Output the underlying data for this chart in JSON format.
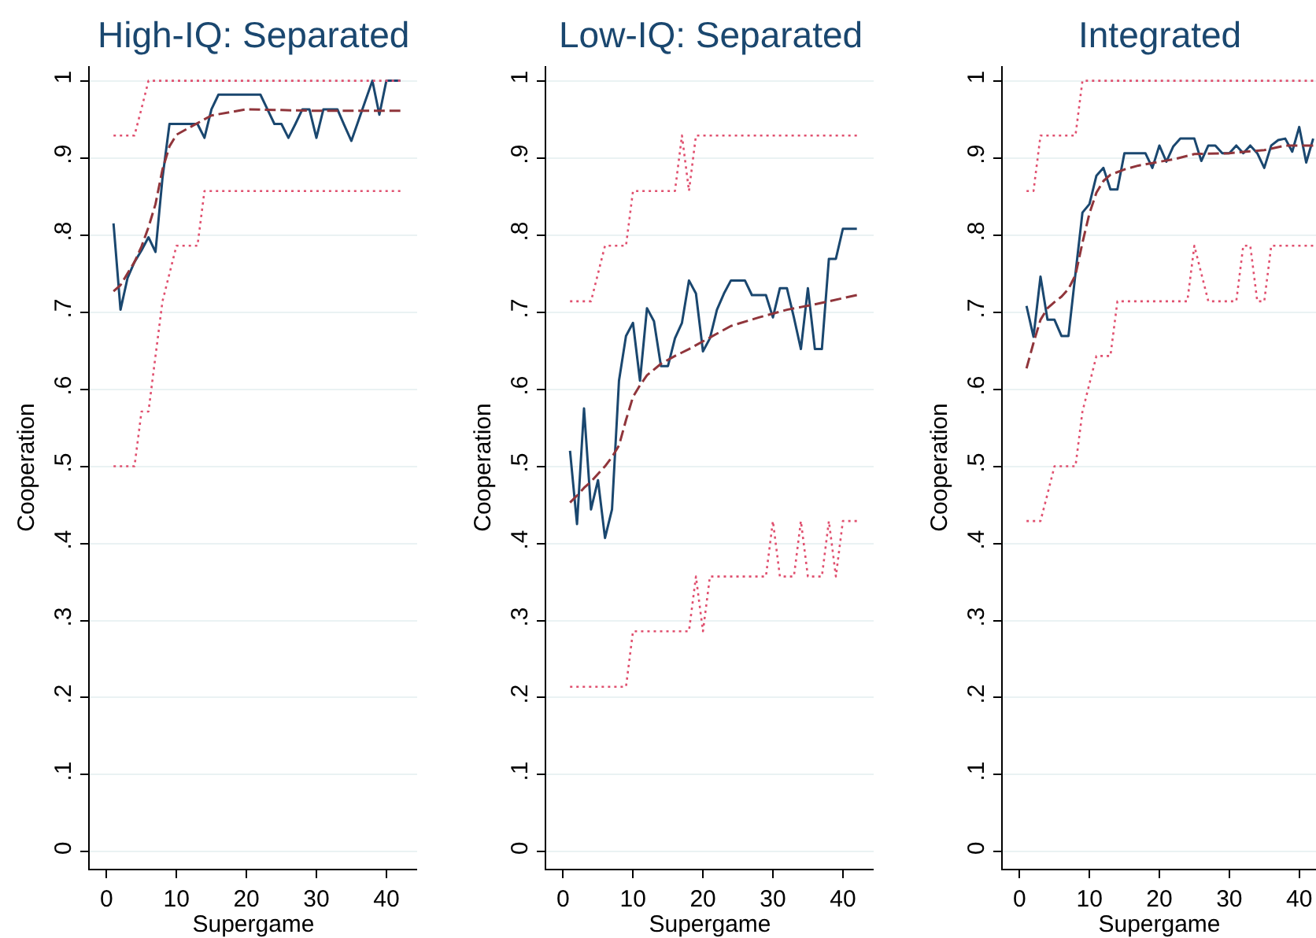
{
  "chart_data": [
    {
      "type": "line",
      "title": "High-IQ: Separated",
      "xlabel": "Supergame",
      "ylabel": "Cooperation",
      "xlim": [
        -2.4,
        44.4
      ],
      "xticks": [
        0,
        10,
        20,
        30,
        40
      ],
      "ylim": [
        -0.022,
        1.019
      ],
      "yticks": [
        0,
        {
          "value": 0.1,
          "label": ".1"
        },
        {
          "value": 0.2,
          "label": ".2"
        },
        {
          "value": 0.3,
          "label": ".3"
        },
        {
          "value": 0.4,
          "label": ".4"
        },
        {
          "value": 0.5,
          "label": ".5"
        },
        {
          "value": 0.6,
          "label": ".6"
        },
        {
          "value": 0.7,
          "label": ".7"
        },
        {
          "value": 0.8,
          "label": ".8"
        },
        {
          "value": 0.9,
          "label": ".9"
        },
        1
      ],
      "grid": "y",
      "x": [
        1,
        2,
        3,
        4,
        5,
        6,
        7,
        8,
        9,
        10,
        11,
        12,
        13,
        14,
        15,
        16,
        17,
        18,
        19,
        20,
        21,
        22,
        23,
        24,
        25,
        26,
        27,
        28,
        29,
        30,
        31,
        32,
        33,
        34,
        35,
        36,
        37,
        38,
        39,
        40,
        41,
        42
      ],
      "series": [
        {
          "line_style": "solid",
          "color": "#1a476f",
          "values": [
            0.815,
            0.703,
            0.744,
            0.765,
            0.78,
            0.797,
            0.778,
            0.874,
            0.944,
            0.944,
            0.944,
            0.944,
            0.944,
            0.926,
            0.963,
            0.982,
            0.982,
            0.982,
            0.982,
            0.982,
            0.982,
            0.982,
            0.963,
            0.944,
            0.944,
            0.926,
            0.944,
            0.963,
            0.963,
            0.926,
            0.963,
            0.963,
            0.963,
            0.942,
            0.922,
            0.948,
            0.974,
            1,
            0.956,
            1,
            1,
            1
          ]
        },
        {
          "line_style": "dashed",
          "color": "#90353b",
          "x": [
            1,
            2,
            3,
            4,
            5,
            6,
            7,
            8,
            9,
            10,
            12,
            15,
            20,
            25,
            30,
            35,
            42
          ],
          "values": [
            0.727,
            0.735,
            0.75,
            0.765,
            0.785,
            0.81,
            0.84,
            0.885,
            0.915,
            0.93,
            0.94,
            0.955,
            0.963,
            0.962,
            0.961,
            0.961,
            0.961
          ]
        },
        {
          "line_style": "dotted",
          "color": "#e0506f",
          "values": [
            0.929,
            0.929,
            0.929,
            0.929,
            0.964,
            1,
            1,
            1,
            1,
            1,
            1,
            1,
            1,
            1,
            1,
            1,
            1,
            1,
            1,
            1,
            1,
            1,
            1,
            1,
            1,
            1,
            1,
            1,
            1,
            1,
            1,
            1,
            1,
            1,
            1,
            1,
            1,
            1,
            1,
            1,
            1,
            1
          ]
        },
        {
          "line_style": "dotted",
          "color": "#e0506f",
          "values": [
            0.5,
            0.5,
            0.5,
            0.5,
            0.571,
            0.571,
            0.643,
            0.714,
            0.75,
            0.786,
            0.786,
            0.786,
            0.786,
            0.857,
            0.857,
            0.857,
            0.857,
            0.857,
            0.857,
            0.857,
            0.857,
            0.857,
            0.857,
            0.857,
            0.857,
            0.857,
            0.857,
            0.857,
            0.857,
            0.857,
            0.857,
            0.857,
            0.857,
            0.857,
            0.857,
            0.857,
            0.857,
            0.857,
            0.857,
            0.857,
            0.857,
            0.857
          ]
        }
      ]
    },
    {
      "type": "line",
      "title": "Low-IQ: Separated",
      "xlabel": "Supergame",
      "ylabel": "Cooperation",
      "xlim": [
        -2.4,
        44.4
      ],
      "xticks": [
        0,
        10,
        20,
        30,
        40
      ],
      "ylim": [
        -0.022,
        1.019
      ],
      "yticks": [
        0,
        {
          "value": 0.1,
          "label": ".1"
        },
        {
          "value": 0.2,
          "label": ".2"
        },
        {
          "value": 0.3,
          "label": ".3"
        },
        {
          "value": 0.4,
          "label": ".4"
        },
        {
          "value": 0.5,
          "label": ".5"
        },
        {
          "value": 0.6,
          "label": ".6"
        },
        {
          "value": 0.7,
          "label": ".7"
        },
        {
          "value": 0.8,
          "label": ".8"
        },
        {
          "value": 0.9,
          "label": ".9"
        },
        1
      ],
      "grid": "y",
      "x": [
        1,
        2,
        3,
        4,
        5,
        6,
        7,
        8,
        9,
        10,
        11,
        12,
        13,
        14,
        15,
        16,
        17,
        18,
        19,
        20,
        21,
        22,
        23,
        24,
        25,
        26,
        27,
        28,
        29,
        30,
        31,
        32,
        33,
        34,
        35,
        36,
        37,
        38,
        39,
        40,
        41,
        42
      ],
      "series": [
        {
          "line_style": "solid",
          "color": "#1a476f",
          "values": [
            0.52,
            0.425,
            0.575,
            0.444,
            0.482,
            0.407,
            0.444,
            0.611,
            0.669,
            0.686,
            0.611,
            0.705,
            0.688,
            0.63,
            0.63,
            0.666,
            0.686,
            0.741,
            0.724,
            0.649,
            0.666,
            0.703,
            0.724,
            0.741,
            0.741,
            0.741,
            0.722,
            0.722,
            0.722,
            0.693,
            0.731,
            0.731,
            0.693,
            0.652,
            0.731,
            0.652,
            0.652,
            0.769,
            0.769,
            0.808,
            0.808,
            0.808
          ]
        },
        {
          "line_style": "dashed",
          "color": "#90353b",
          "x": [
            1,
            2,
            3,
            4,
            5,
            6,
            7,
            8,
            9,
            10,
            11,
            12,
            14,
            16,
            18,
            20,
            22,
            24,
            28,
            32,
            36,
            42
          ],
          "values": [
            0.453,
            0.462,
            0.472,
            0.48,
            0.49,
            0.5,
            0.512,
            0.527,
            0.56,
            0.59,
            0.605,
            0.618,
            0.633,
            0.643,
            0.652,
            0.662,
            0.672,
            0.682,
            0.693,
            0.703,
            0.71,
            0.722
          ]
        },
        {
          "line_style": "dotted",
          "color": "#e0506f",
          "values": [
            0.714,
            0.714,
            0.714,
            0.714,
            0.75,
            0.786,
            0.786,
            0.786,
            0.786,
            0.857,
            0.857,
            0.857,
            0.857,
            0.857,
            0.857,
            0.857,
            0.929,
            0.857,
            0.929,
            0.929,
            0.929,
            0.929,
            0.929,
            0.929,
            0.929,
            0.929,
            0.929,
            0.929,
            0.929,
            0.929,
            0.929,
            0.929,
            0.929,
            0.929,
            0.929,
            0.929,
            0.929,
            0.929,
            0.929,
            0.929,
            0.929,
            0.929
          ]
        },
        {
          "line_style": "dotted",
          "color": "#e0506f",
          "values": [
            0.214,
            0.214,
            0.214,
            0.214,
            0.214,
            0.214,
            0.214,
            0.214,
            0.214,
            0.286,
            0.286,
            0.286,
            0.286,
            0.286,
            0.286,
            0.286,
            0.286,
            0.286,
            0.357,
            0.286,
            0.357,
            0.357,
            0.357,
            0.357,
            0.357,
            0.357,
            0.357,
            0.357,
            0.357,
            0.429,
            0.357,
            0.357,
            0.357,
            0.429,
            0.357,
            0.357,
            0.357,
            0.429,
            0.357,
            0.429,
            0.429,
            0.429
          ]
        }
      ]
    },
    {
      "type": "line",
      "title": "Integrated",
      "xlabel": "Supergame",
      "ylabel": "Cooperation",
      "xlim": [
        -2.4,
        42.4
      ],
      "xticks": [
        0,
        10,
        20,
        30,
        40
      ],
      "ylim": [
        -0.022,
        1.019
      ],
      "yticks": [
        0,
        {
          "value": 0.1,
          "label": ".1"
        },
        {
          "value": 0.2,
          "label": ".2"
        },
        {
          "value": 0.3,
          "label": ".3"
        },
        {
          "value": 0.4,
          "label": ".4"
        },
        {
          "value": 0.5,
          "label": ".5"
        },
        {
          "value": 0.6,
          "label": ".6"
        },
        {
          "value": 0.7,
          "label": ".7"
        },
        {
          "value": 0.8,
          "label": ".8"
        },
        {
          "value": 0.9,
          "label": ".9"
        },
        1
      ],
      "grid": "y",
      "x": [
        1,
        2,
        3,
        4,
        5,
        6,
        7,
        8,
        9,
        10,
        11,
        12,
        13,
        14,
        15,
        16,
        17,
        18,
        19,
        20,
        21,
        22,
        23,
        24,
        25,
        26,
        27,
        28,
        29,
        30,
        31,
        32,
        33,
        34,
        35,
        36,
        37,
        38,
        39,
        40,
        41,
        42
      ],
      "series": [
        {
          "line_style": "solid",
          "color": "#1a476f",
          "values": [
            0.708,
            0.668,
            0.746,
            0.69,
            0.69,
            0.669,
            0.669,
            0.75,
            0.829,
            0.84,
            0.877,
            0.887,
            0.859,
            0.859,
            0.906,
            0.906,
            0.906,
            0.906,
            0.887,
            0.916,
            0.895,
            0.915,
            0.925,
            0.925,
            0.925,
            0.896,
            0.916,
            0.916,
            0.906,
            0.906,
            0.916,
            0.906,
            0.916,
            0.906,
            0.887,
            0.916,
            0.923,
            0.925,
            0.908,
            0.94,
            0.894,
            0.925
          ]
        },
        {
          "line_style": "dashed",
          "color": "#90353b",
          "x": [
            1,
            2,
            3,
            4,
            5,
            6,
            7,
            8,
            9,
            10,
            11,
            12,
            13,
            15,
            17,
            20,
            22,
            25,
            30,
            35,
            38,
            42
          ],
          "values": [
            0.627,
            0.66,
            0.69,
            0.705,
            0.713,
            0.72,
            0.73,
            0.748,
            0.79,
            0.828,
            0.855,
            0.87,
            0.878,
            0.885,
            0.89,
            0.895,
            0.898,
            0.905,
            0.906,
            0.91,
            0.916,
            0.916
          ]
        },
        {
          "line_style": "dotted",
          "color": "#e0506f",
          "values": [
            0.857,
            0.857,
            0.929,
            0.929,
            0.929,
            0.929,
            0.929,
            0.929,
            1,
            1,
            1,
            1,
            1,
            1,
            1,
            1,
            1,
            1,
            1,
            1,
            1,
            1,
            1,
            1,
            1,
            1,
            1,
            1,
            1,
            1,
            1,
            1,
            1,
            1,
            1,
            1,
            1,
            1,
            1,
            1,
            1,
            1
          ]
        },
        {
          "line_style": "dotted",
          "color": "#e0506f",
          "values": [
            0.429,
            0.429,
            0.429,
            0.464,
            0.5,
            0.5,
            0.5,
            0.5,
            0.571,
            0.607,
            0.643,
            0.643,
            0.643,
            0.714,
            0.714,
            0.714,
            0.714,
            0.714,
            0.714,
            0.714,
            0.714,
            0.714,
            0.714,
            0.714,
            0.786,
            0.75,
            0.714,
            0.714,
            0.714,
            0.714,
            0.714,
            0.786,
            0.786,
            0.714,
            0.714,
            0.786,
            0.786,
            0.786,
            0.786,
            0.786,
            0.786,
            0.786
          ]
        }
      ]
    }
  ]
}
